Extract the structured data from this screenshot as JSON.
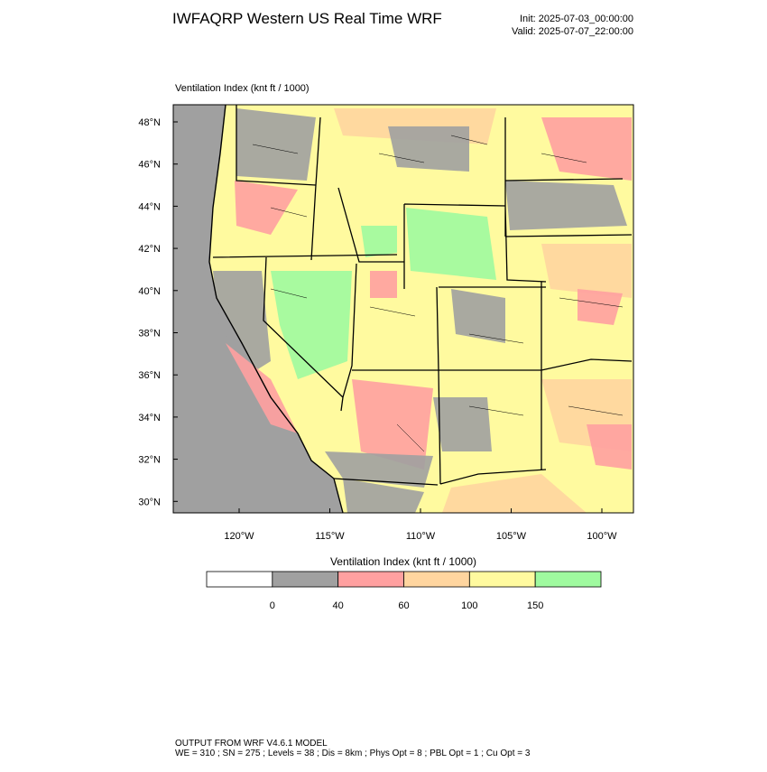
{
  "header": {
    "title": "IWFAQRP Western US Real Time WRF",
    "init": "Init: 2025-07-03_00:00:00",
    "valid": "Valid: 2025-07-07_22:00:00"
  },
  "map": {
    "label": "Ventilation Index   (knt ft / 1000)",
    "lat_ticks": [
      {
        "value": 48,
        "label": "48°N"
      },
      {
        "value": 46,
        "label": "46°N"
      },
      {
        "value": 44,
        "label": "44°N"
      },
      {
        "value": 42,
        "label": "42°N"
      },
      {
        "value": 40,
        "label": "40°N"
      },
      {
        "value": 38,
        "label": "38°N"
      },
      {
        "value": 36,
        "label": "36°N"
      },
      {
        "value": 34,
        "label": "34°N"
      },
      {
        "value": 32,
        "label": "32°N"
      },
      {
        "value": 30,
        "label": "30°N"
      }
    ],
    "lon_ticks": [
      {
        "value": -120,
        "label": "120°W"
      },
      {
        "value": -115,
        "label": "115°W"
      },
      {
        "value": -110,
        "label": "110°W"
      },
      {
        "value": -105,
        "label": "105°W"
      },
      {
        "value": -100,
        "label": "100°W"
      }
    ]
  },
  "colorbar": {
    "title": "Ventilation Index   (knt ft / 1000)",
    "levels": [
      0,
      40,
      60,
      100,
      150
    ],
    "colors": [
      "#ffffff",
      "#a0a0a0",
      "#ffa0a0",
      "#ffd59f",
      "#fffa9f",
      "#9ffa9f"
    ]
  },
  "footer": {
    "line1": "OUTPUT FROM WRF V4.6.1 MODEL",
    "line2": "WE = 310 ; SN = 275 ; Levels = 38 ; Dis = 8km ; Phys Opt = 8 ; PBL Opt = 1 ; Cu Opt = 3"
  }
}
